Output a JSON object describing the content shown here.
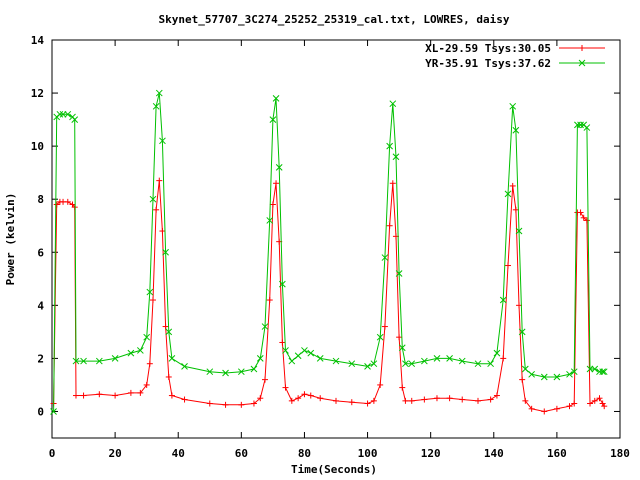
{
  "chart_data": {
    "type": "line",
    "title": "Skynet_57707_3C274_25252_25319_cal.txt, LOWRES, daisy",
    "xlabel": "Time(Seconds)",
    "ylabel": "Power (kelvin)",
    "xlim": [
      0,
      180
    ],
    "ylim": [
      -1,
      14
    ],
    "x_ticks": [
      0,
      20,
      40,
      60,
      80,
      100,
      120,
      140,
      160,
      180
    ],
    "y_ticks": [
      0,
      2,
      4,
      6,
      8,
      10,
      12,
      14
    ],
    "grid": false,
    "legend_position": "top-right",
    "series": [
      {
        "name": "XL-29.59 Tsys:30.05",
        "color": "#ff0000",
        "marker": "plus",
        "x": [
          0.5,
          1.5,
          2.5,
          3.5,
          5,
          6.5,
          7.2,
          7.6,
          10,
          15,
          20,
          25,
          28,
          30,
          31,
          32,
          33,
          34,
          35,
          36,
          37,
          38,
          42,
          50,
          55,
          60,
          64,
          66,
          67.5,
          69,
          70,
          71,
          72,
          73,
          74,
          76,
          78,
          80,
          82,
          85,
          90,
          95,
          100,
          102,
          104,
          105.5,
          107,
          108,
          109,
          110,
          111,
          112,
          114,
          118,
          122,
          126,
          130,
          135,
          139,
          141,
          143,
          144.5,
          146,
          147,
          148,
          149,
          150,
          152,
          156,
          160,
          164,
          165.5,
          166.5,
          167.5,
          168.5,
          169.5,
          170.5,
          172,
          173.5,
          174.5,
          175
        ],
        "y": [
          0.3,
          7.8,
          7.9,
          7.9,
          7.9,
          7.8,
          7.7,
          0.6,
          0.6,
          0.65,
          0.6,
          0.7,
          0.7,
          1.0,
          1.8,
          4.2,
          7.6,
          8.7,
          6.8,
          3.2,
          1.3,
          0.6,
          0.45,
          0.3,
          0.25,
          0.25,
          0.3,
          0.5,
          1.2,
          4.2,
          7.8,
          8.6,
          6.4,
          2.6,
          0.9,
          0.4,
          0.5,
          0.65,
          0.6,
          0.5,
          0.4,
          0.35,
          0.3,
          0.4,
          1.0,
          3.2,
          7.0,
          8.6,
          6.6,
          2.8,
          0.9,
          0.4,
          0.4,
          0.45,
          0.5,
          0.5,
          0.45,
          0.4,
          0.45,
          0.6,
          2.0,
          5.5,
          8.5,
          7.6,
          4.0,
          1.2,
          0.4,
          0.1,
          0.0,
          0.1,
          0.2,
          0.3,
          7.5,
          7.5,
          7.3,
          7.2,
          0.3,
          0.4,
          0.5,
          0.3,
          0.2
        ]
      },
      {
        "name": "YR-35.91 Tsys:37.62",
        "color": "#00c000",
        "marker": "x",
        "x": [
          0.5,
          1.5,
          2.5,
          3.5,
          5,
          6.5,
          7.2,
          7.6,
          10,
          15,
          20,
          25,
          28,
          30,
          31,
          32,
          33,
          34,
          35,
          36,
          37,
          38,
          42,
          50,
          55,
          60,
          64,
          66,
          67.5,
          69,
          70,
          71,
          72,
          73,
          74,
          76,
          78,
          80,
          82,
          85,
          90,
          95,
          100,
          102,
          104,
          105.5,
          107,
          108,
          109,
          110,
          111,
          112,
          114,
          118,
          122,
          126,
          130,
          135,
          139,
          141,
          143,
          144.5,
          146,
          147,
          148,
          149,
          150,
          152,
          156,
          160,
          164,
          165.5,
          166.5,
          167.5,
          168.5,
          169.5,
          170.5,
          172,
          173.5,
          174.5,
          175
        ],
        "y": [
          0.0,
          11.1,
          11.2,
          11.2,
          11.2,
          11.1,
          11.0,
          1.9,
          1.9,
          1.9,
          2.0,
          2.2,
          2.3,
          2.8,
          4.5,
          8.0,
          11.5,
          12.0,
          10.2,
          6.0,
          3.0,
          2.0,
          1.7,
          1.5,
          1.45,
          1.5,
          1.6,
          2.0,
          3.2,
          7.2,
          11.0,
          11.8,
          9.2,
          4.8,
          2.3,
          1.9,
          2.1,
          2.3,
          2.2,
          2.0,
          1.9,
          1.8,
          1.7,
          1.8,
          2.8,
          5.8,
          10.0,
          11.6,
          9.6,
          5.2,
          2.4,
          1.8,
          1.8,
          1.9,
          2.0,
          2.0,
          1.9,
          1.8,
          1.8,
          2.2,
          4.2,
          8.2,
          11.5,
          10.6,
          6.8,
          3.0,
          1.6,
          1.4,
          1.3,
          1.3,
          1.4,
          1.5,
          10.8,
          10.8,
          10.8,
          10.7,
          1.6,
          1.6,
          1.5,
          1.5,
          1.5
        ]
      }
    ]
  }
}
